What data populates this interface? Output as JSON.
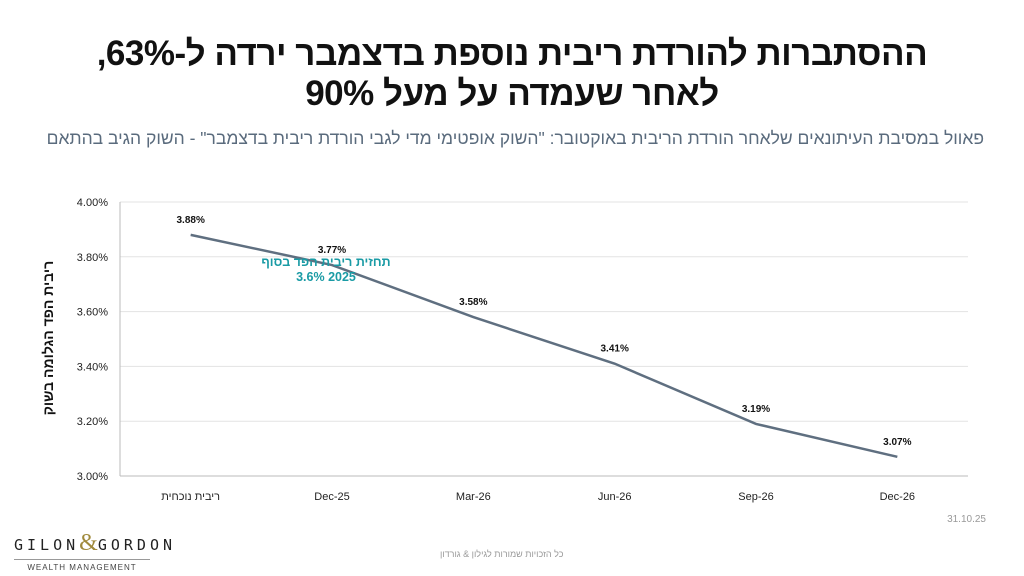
{
  "header": {
    "title_line1": "ההסתברות להורדת ריבית נוספת בדצמבר ירדה ל-63%,",
    "title_line2": "לאחר שעמדה על מעל 90%",
    "subtitle": "פאוול במסיבת העיתונאים שלאחר הורדת הריבית באוקטובר: \"השוק אופטימי מדי לגבי הורדת ריבית בדצמבר\" - השוק הגיב בהתאם"
  },
  "chart_data": {
    "type": "line",
    "ylabel": "ריבית הפד הגלומה בשוק",
    "categories": [
      "ריבית נוכחית",
      "Dec-25",
      "Mar-26",
      "Jun-26",
      "Sep-26",
      "Dec-26"
    ],
    "values": [
      3.88,
      3.77,
      3.58,
      3.41,
      3.19,
      3.07
    ],
    "data_labels": [
      "3.88%",
      "3.77%",
      "3.58%",
      "3.41%",
      "3.19%",
      "3.07%"
    ],
    "ylim": [
      3.0,
      4.0
    ],
    "yticks": [
      3.0,
      3.2,
      3.4,
      3.6,
      3.8,
      4.0
    ],
    "ytick_labels": [
      "3.00%",
      "3.20%",
      "3.40%",
      "3.60%",
      "3.80%",
      "4.00%"
    ],
    "grid": true,
    "annotation": {
      "line1": "תחזית ריבית הפד בסוף",
      "line2": "3.6% 2025"
    },
    "line_color": "#5f6f80",
    "annotation_color": "#1a9ba5"
  },
  "footer": {
    "date": "31.10.25",
    "copyright": "כל הזכויות שמורות לגילון & גורדון",
    "logo_name_left": "GILON",
    "logo_amp": "&",
    "logo_name_right": "GORDON",
    "logo_sub": "WEALTH MANAGEMENT"
  }
}
